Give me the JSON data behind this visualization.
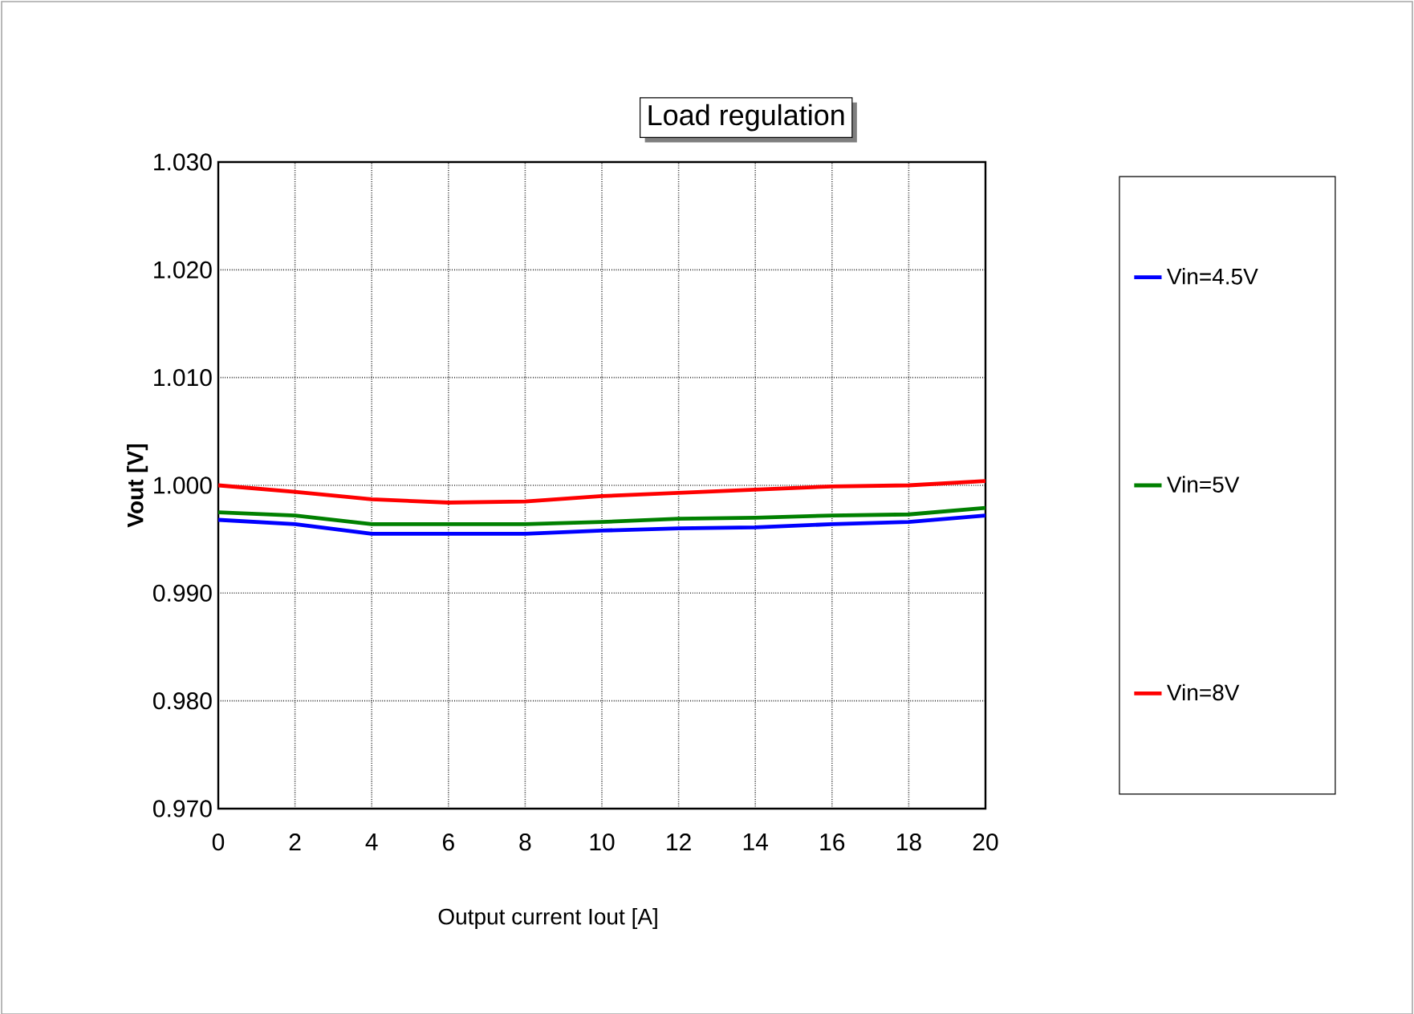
{
  "chart_data": {
    "type": "line",
    "title": "Load regulation",
    "xlabel": "Output current Iout [A]",
    "ylabel": "Vout [V]",
    "x": [
      0,
      2,
      4,
      6,
      8,
      10,
      12,
      14,
      16,
      18,
      20
    ],
    "series": [
      {
        "name": "Vin=4.5V",
        "color": "#0000ff",
        "values": [
          0.9968,
          0.9964,
          0.9955,
          0.9955,
          0.9955,
          0.9958,
          0.996,
          0.9961,
          0.9964,
          0.9966,
          0.9972
        ]
      },
      {
        "name": "Vin=5V",
        "color": "#008000",
        "values": [
          0.9975,
          0.9972,
          0.9964,
          0.9964,
          0.9964,
          0.9966,
          0.9969,
          0.997,
          0.9972,
          0.9973,
          0.9979
        ]
      },
      {
        "name": "Vin=8V",
        "color": "#ff0000",
        "values": [
          1.0,
          0.9994,
          0.9987,
          0.9984,
          0.9985,
          0.999,
          0.9993,
          0.9996,
          0.9999,
          1.0,
          1.0004
        ]
      }
    ],
    "xlim": [
      0,
      20
    ],
    "xticks": [
      0,
      2,
      4,
      6,
      8,
      10,
      12,
      14,
      16,
      18,
      20
    ],
    "ylim": [
      0.97,
      1.03
    ],
    "yticks": [
      {
        "value": 0.97,
        "label": "0.970"
      },
      {
        "value": 0.98,
        "label": "0.980"
      },
      {
        "value": 0.99,
        "label": "0.990"
      },
      {
        "value": 1.0,
        "label": "1.000"
      },
      {
        "value": 1.01,
        "label": "1.010"
      },
      {
        "value": 1.02,
        "label": "1.020"
      },
      {
        "value": 1.03,
        "label": "1.030"
      }
    ],
    "grid": true,
    "legend": "right",
    "marker": "none",
    "line_style": "solid"
  }
}
